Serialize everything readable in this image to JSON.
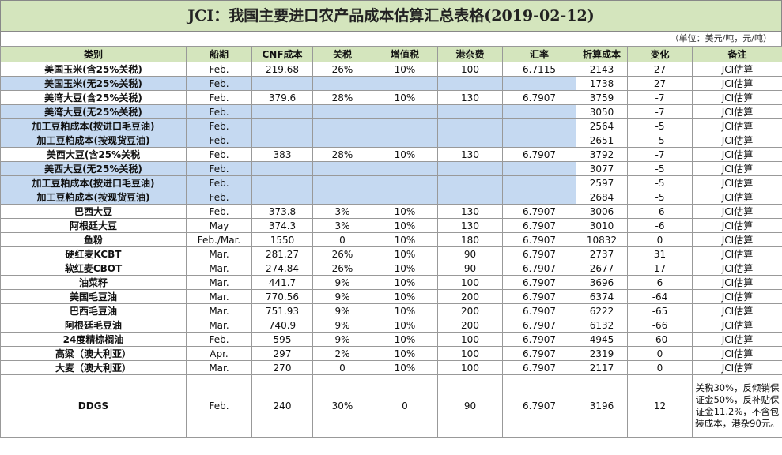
{
  "header": {
    "title": "JCI：我国主要进口农产品成本估算汇总表格(2019-02-12)",
    "unit": "（单位：美元/吨，元/吨）"
  },
  "table": {
    "columns": [
      "类别",
      "船期",
      "CNF成本",
      "关税",
      "增值税",
      "港杂费",
      "汇率",
      "折算成本",
      "变化",
      "备注"
    ],
    "rows": [
      [
        "美国玉米(含25%关税)",
        "Feb.",
        "219.68",
        "26%",
        "10%",
        "100",
        "6.7115",
        "2143",
        "27",
        "JCI估算"
      ],
      [
        "美国玉米(无25%关税)",
        "Feb.",
        null,
        null,
        null,
        null,
        null,
        "1738",
        "27",
        "JCI估算"
      ],
      [
        "美湾大豆(含25%关税)",
        "Feb.",
        "379.6",
        "28%",
        "10%",
        "130",
        "6.7907",
        "3759",
        "-7",
        "JCI估算"
      ],
      [
        "美湾大豆(无25%关税)",
        "Feb.",
        null,
        null,
        null,
        null,
        null,
        "3050",
        "-7",
        "JCI估算"
      ],
      [
        "加工豆粕成本(按进口毛豆油)",
        "Feb.",
        null,
        null,
        null,
        null,
        null,
        "2564",
        "-5",
        "JCI估算"
      ],
      [
        "加工豆粕成本(按现货豆油)",
        "Feb.",
        null,
        null,
        null,
        null,
        null,
        "2651",
        "-5",
        "JCI估算"
      ],
      [
        "美西大豆(含25%关税",
        "Feb.",
        "383",
        "28%",
        "10%",
        "130",
        "6.7907",
        "3792",
        "-7",
        "JCI估算"
      ],
      [
        "美西大豆(无25%关税)",
        "Feb.",
        null,
        null,
        null,
        null,
        null,
        "3077",
        "-5",
        "JCI估算"
      ],
      [
        "加工豆粕成本(按进口毛豆油)",
        "Feb.",
        null,
        null,
        null,
        null,
        null,
        "2597",
        "-5",
        "JCI估算"
      ],
      [
        "加工豆粕成本(按现货豆油)",
        "Feb.",
        null,
        null,
        null,
        null,
        null,
        "2684",
        "-5",
        "JCI估算"
      ],
      [
        "巴西大豆",
        "Feb.",
        "373.8",
        "3%",
        "10%",
        "130",
        "6.7907",
        "3006",
        "-6",
        "JCI估算"
      ],
      [
        "阿根廷大豆",
        "May",
        "374.3",
        "3%",
        "10%",
        "130",
        "6.7907",
        "3010",
        "-6",
        "JCI估算"
      ],
      [
        "鱼粉",
        "Feb./Mar.",
        "1550",
        "0",
        "10%",
        "180",
        "6.7907",
        "10832",
        "0",
        "JCI估算"
      ],
      [
        "硬红麦KCBT",
        "Mar.",
        "281.27",
        "26%",
        "10%",
        "90",
        "6.7907",
        "2737",
        "31",
        "JCI估算"
      ],
      [
        "软红麦CBOT",
        "Mar.",
        "274.84",
        "26%",
        "10%",
        "90",
        "6.7907",
        "2677",
        "17",
        "JCI估算"
      ],
      [
        "油菜籽",
        "Mar.",
        "441.7",
        "9%",
        "10%",
        "100",
        "6.7907",
        "3696",
        "6",
        "JCI估算"
      ],
      [
        "美国毛豆油",
        "Mar.",
        "770.56",
        "9%",
        "10%",
        "200",
        "6.7907",
        "6374",
        "-64",
        "JCI估算"
      ],
      [
        "巴西毛豆油",
        "Mar.",
        "751.93",
        "9%",
        "10%",
        "200",
        "6.7907",
        "6222",
        "-65",
        "JCI估算"
      ],
      [
        "阿根廷毛豆油",
        "Mar.",
        "740.9",
        "9%",
        "10%",
        "200",
        "6.7907",
        "6132",
        "-66",
        "JCI估算"
      ],
      [
        "24度精棕榈油",
        "Feb.",
        "595",
        "9%",
        "10%",
        "100",
        "6.7907",
        "4945",
        "-60",
        "JCI估算"
      ],
      [
        "高粱（澳大利亚）",
        "Apr.",
        "297",
        "2%",
        "10%",
        "100",
        "6.7907",
        "2319",
        "0",
        "JCI估算"
      ],
      [
        "大麦（澳大利亚）",
        "Mar.",
        "270",
        "0",
        "10%",
        "100",
        "6.7907",
        "2117",
        "0",
        "JCI估算"
      ],
      [
        "DDGS",
        "Feb.",
        "240",
        "30%",
        "0",
        "90",
        "6.7907",
        "3196",
        "12",
        "关税30%，反倾销保证金50%，反补贴保证金11.2%，不含包装成本，港杂90元。"
      ]
    ]
  }
}
